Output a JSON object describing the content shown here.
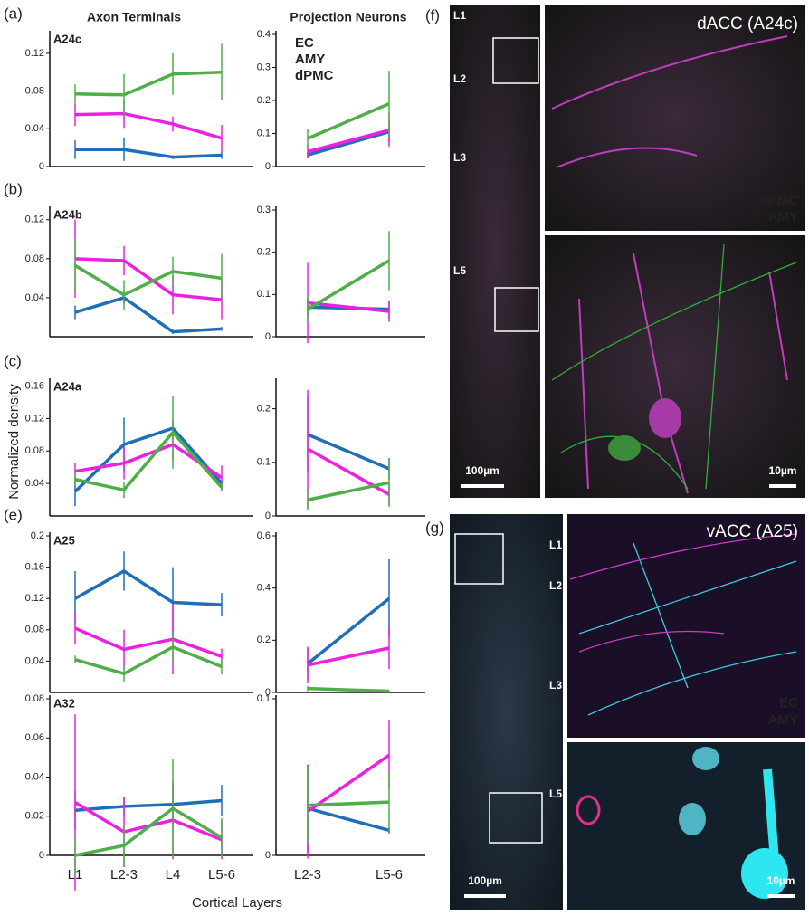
{
  "figure_texts": {
    "left_header": "Axon Terminals",
    "right_header": "Projection Neurons",
    "y_label": "Normalized density",
    "x_label": "Cortical Layers"
  },
  "chart_data": [
    {
      "type": "line",
      "panel": "(a)",
      "title": "A24c",
      "categories": [
        null,
        null,
        null,
        null
      ],
      "ylim": [
        0,
        0.14
      ],
      "yticks": [
        0,
        0.04,
        0.08,
        0.12
      ],
      "series": [
        {
          "color": "#1f6fb8",
          "values": [
            0.018,
            0.018,
            0.01,
            0.012
          ],
          "errors": [
            0.01,
            0.012,
            0.002,
            0.004
          ]
        },
        {
          "color": "#ec20e0",
          "values": [
            0.055,
            0.056,
            0.045,
            0.03
          ],
          "errors": [
            0.012,
            0.015,
            0.008,
            0.014
          ]
        },
        {
          "color": "#4fae48",
          "values": [
            0.077,
            0.076,
            0.098,
            0.1
          ],
          "errors": [
            0.01,
            0.022,
            0.022,
            0.03
          ]
        }
      ]
    },
    {
      "type": "line",
      "title": "",
      "categories": [
        null,
        null
      ],
      "ylim": [
        0,
        0.4
      ],
      "yticks": [
        0,
        0.1,
        0.2,
        0.3,
        0.4
      ],
      "legend": true,
      "series": [
        {
          "name": "EC",
          "color": "#1f6fb8",
          "values": [
            0.035,
            0.105
          ],
          "errors": [
            0.01,
            0.03
          ]
        },
        {
          "name": "AMY",
          "color": "#ec20e0",
          "values": [
            0.045,
            0.11
          ],
          "errors": [
            0.02,
            0.05
          ]
        },
        {
          "name": "dPMC",
          "color": "#4fae48",
          "values": [
            0.085,
            0.19
          ],
          "errors": [
            0.03,
            0.1
          ]
        }
      ]
    },
    {
      "type": "line",
      "panel": "(b)",
      "title": "A24b",
      "categories": [
        null,
        null,
        null,
        null
      ],
      "ylim": [
        0,
        0.13
      ],
      "yticks": [
        0.04,
        0.08,
        0.12
      ],
      "series": [
        {
          "color": "#1f6fb8",
          "values": [
            0.025,
            0.04,
            0.005,
            0.008
          ],
          "errors": [
            0.007,
            0.006,
            0.002,
            0.002
          ]
        },
        {
          "color": "#ec20e0",
          "values": [
            0.08,
            0.078,
            0.043,
            0.038
          ],
          "errors": [
            0.04,
            0.015,
            0.02,
            0.02
          ]
        },
        {
          "color": "#4fae48",
          "values": [
            0.073,
            0.043,
            0.067,
            0.06
          ],
          "errors": [
            0.027,
            0.015,
            0.015,
            0.025
          ]
        }
      ]
    },
    {
      "type": "line",
      "categories": [
        null,
        null
      ],
      "ylim": [
        0,
        0.3
      ],
      "yticks": [
        0,
        0.1,
        0.2,
        0.3
      ],
      "series": [
        {
          "color": "#1f6fb8",
          "values": [
            0.07,
            0.065
          ],
          "errors": [
            0.02,
            0.02
          ]
        },
        {
          "color": "#ec20e0",
          "values": [
            0.08,
            0.06
          ],
          "errors": [
            0.095,
            0.025
          ]
        },
        {
          "color": "#4fae48",
          "values": [
            0.065,
            0.18
          ],
          "errors": [
            0.03,
            0.07
          ]
        }
      ]
    },
    {
      "type": "line",
      "panel": "(c)",
      "title": "A24a",
      "categories": [
        null,
        null,
        null,
        null
      ],
      "ylim": [
        0,
        0.165
      ],
      "yticks": [
        0.04,
        0.08,
        0.12,
        0.16
      ],
      "series": [
        {
          "color": "#1f6fb8",
          "values": [
            0.03,
            0.088,
            0.108,
            0.04
          ],
          "errors": [
            0.018,
            0.033,
            0.01,
            0.005
          ]
        },
        {
          "color": "#ec20e0",
          "values": [
            0.055,
            0.065,
            0.088,
            0.047
          ],
          "errors": [
            0.01,
            0.02,
            0.02,
            0.015
          ]
        },
        {
          "color": "#4fae48",
          "values": [
            0.045,
            0.032,
            0.103,
            0.035
          ],
          "errors": [
            0.008,
            0.01,
            0.045,
            0.005
          ]
        }
      ]
    },
    {
      "type": "line",
      "categories": [
        null,
        null
      ],
      "ylim": [
        0,
        0.25
      ],
      "yticks": [
        0,
        0.1,
        0.2
      ],
      "series": [
        {
          "color": "#1f6fb8",
          "values": [
            0.152,
            0.088
          ],
          "errors": [
            0.07,
            0.02
          ]
        },
        {
          "color": "#ec20e0",
          "values": [
            0.125,
            0.04
          ],
          "errors": [
            0.11,
            0.02
          ]
        },
        {
          "color": "#4fae48",
          "values": [
            0.03,
            0.062
          ],
          "errors": [
            0.02,
            0.045
          ]
        }
      ]
    },
    {
      "type": "line",
      "panel": "(e)",
      "title": "A25",
      "categories": [
        null,
        null,
        null,
        null
      ],
      "ylim": [
        0,
        0.2
      ],
      "yticks": [
        0.04,
        0.08,
        0.12,
        0.16,
        0.2
      ],
      "series": [
        {
          "color": "#1f6fb8",
          "values": [
            0.12,
            0.155,
            0.115,
            0.112
          ],
          "errors": [
            0.035,
            0.025,
            0.045,
            0.015
          ]
        },
        {
          "color": "#ec20e0",
          "values": [
            0.082,
            0.055,
            0.068,
            0.046
          ],
          "errors": [
            0.02,
            0.025,
            0.045,
            0.01
          ]
        },
        {
          "color": "#4fae48",
          "values": [
            0.042,
            0.024,
            0.058,
            0.033
          ],
          "errors": [
            0.005,
            0.01,
            0.02,
            0.01
          ]
        }
      ]
    },
    {
      "type": "line",
      "categories": [
        null,
        null
      ],
      "ylim": [
        0,
        0.6
      ],
      "yticks": [
        0,
        0.2,
        0.4,
        0.6
      ],
      "series": [
        {
          "color": "#1f6fb8",
          "values": [
            0.11,
            0.36
          ],
          "errors": [
            0.06,
            0.15
          ]
        },
        {
          "color": "#ec20e0",
          "values": [
            0.105,
            0.17
          ],
          "errors": [
            0.07,
            0.08
          ]
        },
        {
          "color": "#4fae48",
          "values": [
            0.015,
            0.005
          ],
          "errors": [
            0.01,
            0.003
          ]
        }
      ]
    },
    {
      "type": "line",
      "title": "A32",
      "categories": [
        "L1",
        "L2-3",
        "L4",
        "L5-6"
      ],
      "ylim": [
        0,
        0.08
      ],
      "yticks": [
        0,
        0.02,
        0.04,
        0.06,
        0.08
      ],
      "series": [
        {
          "color": "#1f6fb8",
          "values": [
            0.023,
            0.025,
            0.026,
            0.028
          ],
          "errors": [
            0.01,
            0.005,
            0.01,
            0.008
          ]
        },
        {
          "color": "#ec20e0",
          "values": [
            0.027,
            0.012,
            0.018,
            0.008
          ],
          "errors": [
            0.045,
            0.018,
            0.02,
            0.01
          ]
        },
        {
          "color": "#4fae48",
          "values": [
            0,
            0.005,
            0.024,
            0.009
          ],
          "errors": [
            0.01,
            0.01,
            0.025,
            0.01
          ]
        }
      ]
    },
    {
      "type": "line",
      "categories": [
        "L2-3",
        "L5-6"
      ],
      "ylim": [
        0,
        0.1
      ],
      "yticks": [
        0,
        0.1
      ],
      "series": [
        {
          "color": "#1f6fb8",
          "values": [
            0.03,
            0.016
          ],
          "errors": [
            0.028,
            0.002
          ]
        },
        {
          "color": "#ec20e0",
          "values": [
            0.028,
            0.064
          ],
          "errors": [
            0.03,
            0.022
          ]
        },
        {
          "color": "#4fae48",
          "values": [
            0.032,
            0.034
          ],
          "errors": [
            0.025,
            0.02
          ]
        }
      ]
    }
  ],
  "image_panels": [
    {
      "panel": "(f)",
      "layers": [
        "L1",
        "L2",
        "L3",
        "L5"
      ],
      "scale_low": "100µm",
      "title": "dACC (A24c)",
      "stains": [
        "dPMC",
        "AMY"
      ],
      "scale_high": "10µm"
    },
    {
      "panel": "(g)",
      "layers": [
        "L1",
        "L2",
        "L3",
        "L5"
      ],
      "scale_low": "100µm",
      "title": "vACC (A25)",
      "stains": [
        "EC",
        "AMY"
      ],
      "scale_high": "10µm"
    }
  ]
}
